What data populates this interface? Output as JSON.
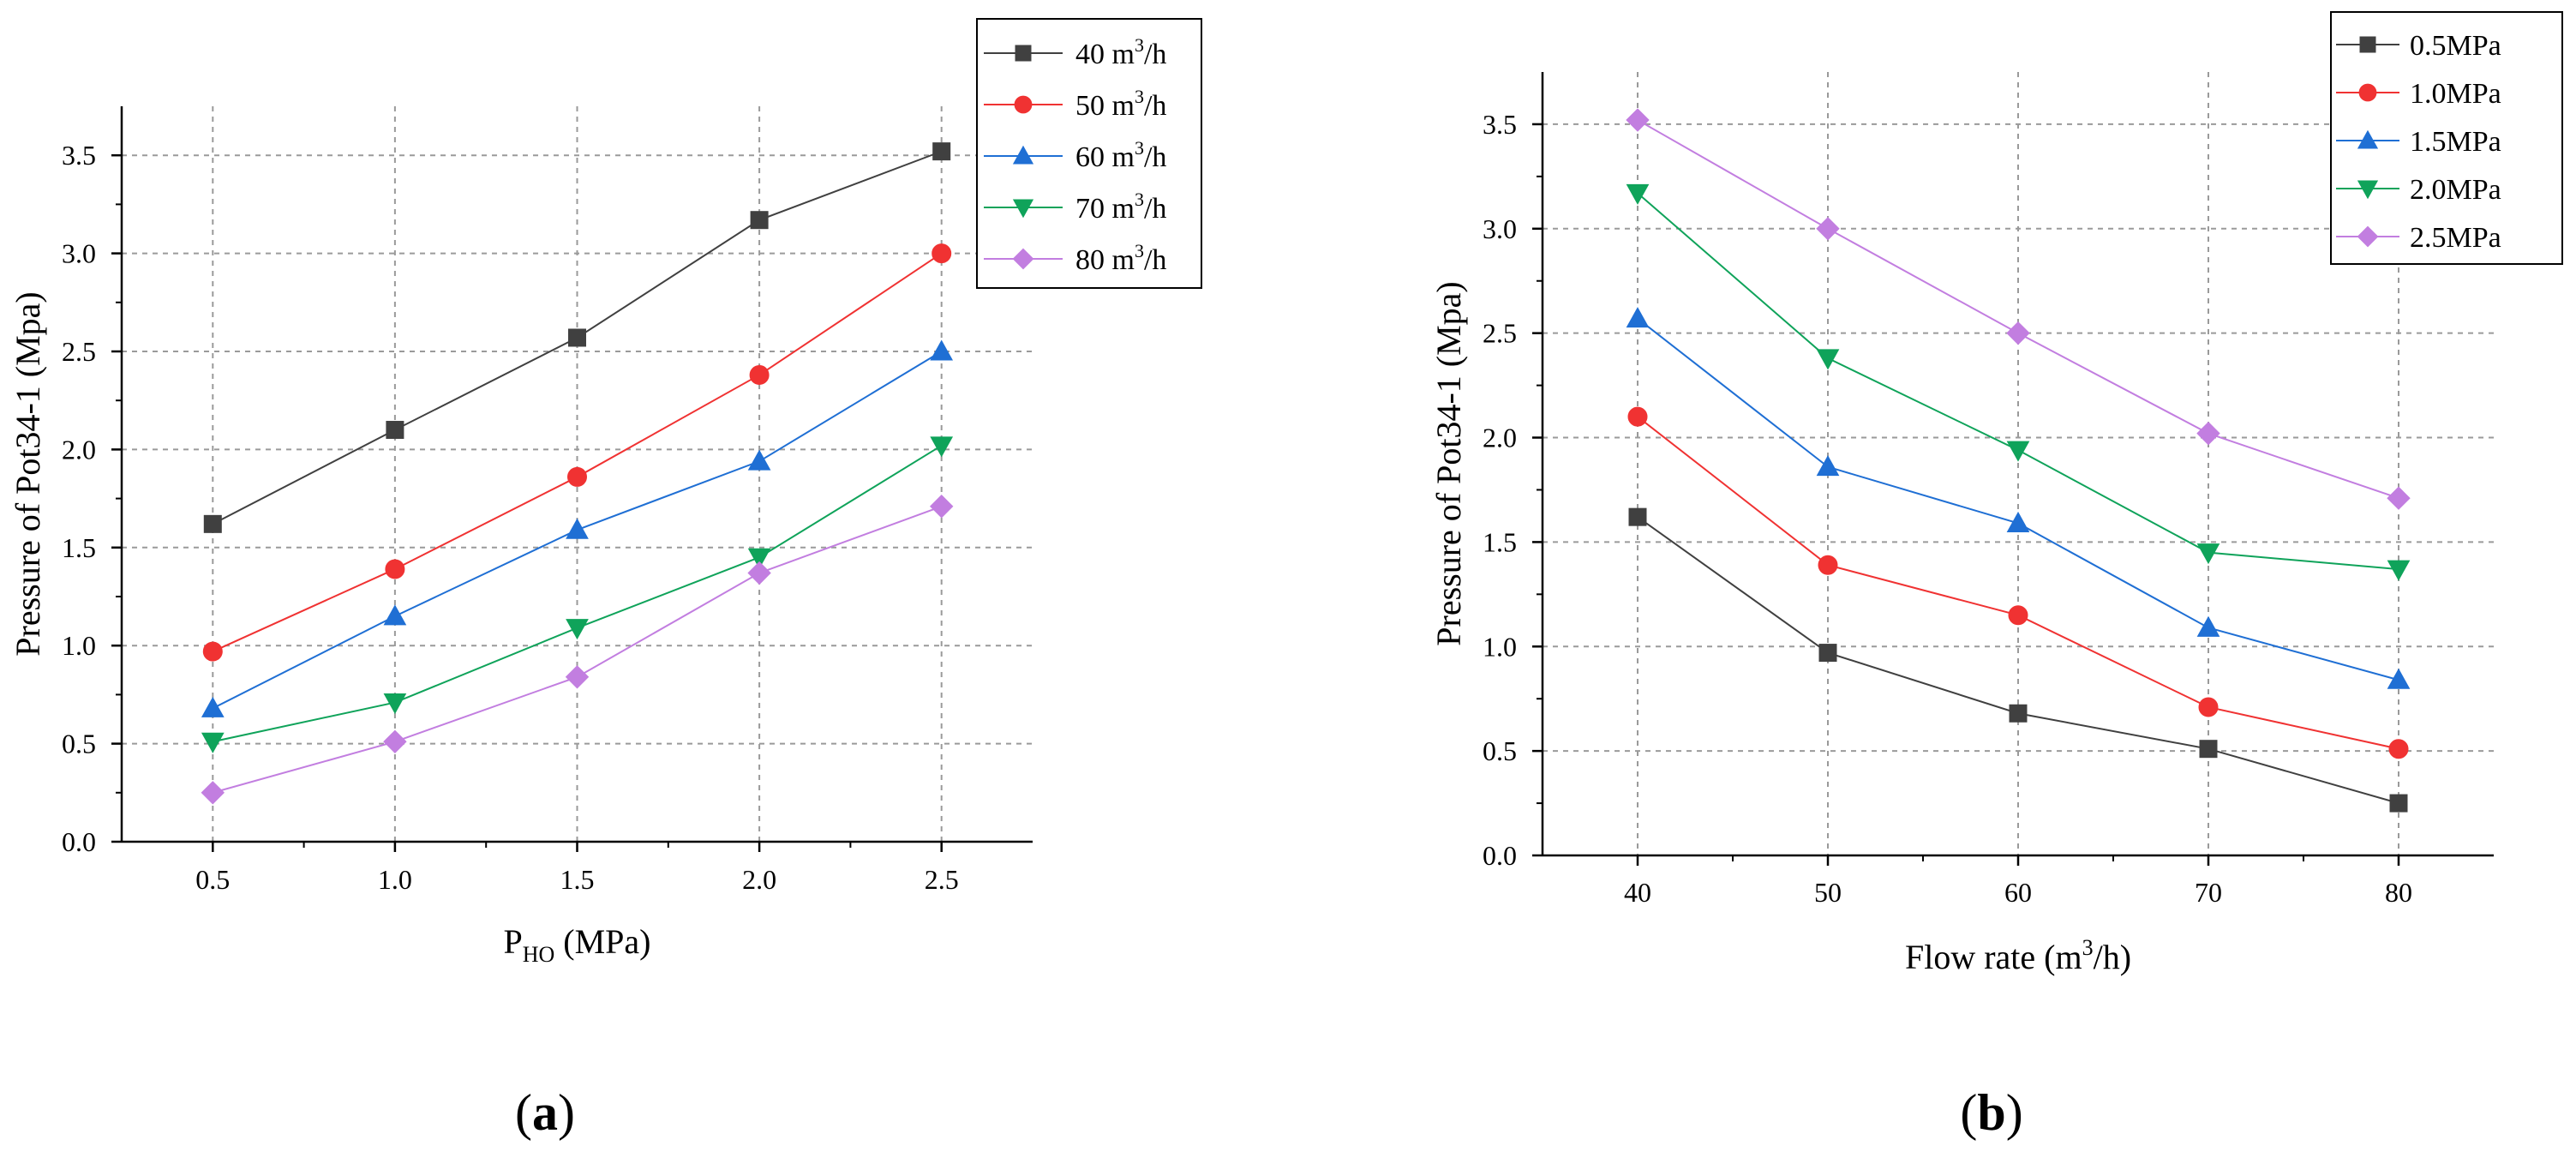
{
  "panels": [
    {
      "label": "a",
      "chart_data": {
        "type": "line",
        "title": "",
        "x": [
          0.5,
          1.0,
          1.5,
          2.0,
          2.5
        ],
        "xticks": [
          "0.5",
          "1.0",
          "1.5",
          "2.0",
          "2.5"
        ],
        "yticks": [
          "0.0",
          "0.5",
          "1.0",
          "1.5",
          "2.0",
          "2.5",
          "3.0",
          "3.5"
        ],
        "xlim": [
          0.25,
          2.75
        ],
        "ylim": [
          0,
          3.75
        ],
        "xlabel": {
          "main": "P",
          "sub": "HO",
          "rest": " (MPa)"
        },
        "ylabel": "Pressure of Pot34-1 (Mpa)",
        "grid": true,
        "legend_position": "top-right",
        "series": [
          {
            "name": "40 m",
            "sup": "3",
            "unit_rest": "/h",
            "color": "#404040",
            "marker": "square",
            "values": [
              1.62,
              2.1,
              2.57,
              3.17,
              3.52
            ]
          },
          {
            "name": "50 m",
            "sup": "3",
            "unit_rest": "/h",
            "color": "#f03232",
            "marker": "circle",
            "values": [
              0.97,
              1.39,
              1.86,
              2.38,
              3.0
            ]
          },
          {
            "name": "60 m",
            "sup": "3",
            "unit_rest": "/h",
            "color": "#1f6fd4",
            "marker": "triangle",
            "values": [
              0.68,
              1.15,
              1.59,
              1.94,
              2.5
            ]
          },
          {
            "name": "70 m",
            "sup": "3",
            "unit_rest": "/h",
            "color": "#0fa35a",
            "marker": "tri-down",
            "values": [
              0.51,
              0.71,
              1.09,
              1.45,
              2.02
            ]
          },
          {
            "name": "80 m",
            "sup": "3",
            "unit_rest": "/h",
            "color": "#c27ee0",
            "marker": "diamond",
            "values": [
              0.25,
              0.51,
              0.84,
              1.37,
              1.71
            ]
          }
        ]
      }
    },
    {
      "label": "b",
      "chart_data": {
        "type": "line",
        "title": "",
        "x": [
          40,
          50,
          60,
          70,
          80
        ],
        "xticks": [
          "40",
          "50",
          "60",
          "70",
          "80"
        ],
        "yticks": [
          "0.0",
          "0.5",
          "1.0",
          "1.5",
          "2.0",
          "2.5",
          "3.0",
          "3.5"
        ],
        "xlim": [
          35,
          85
        ],
        "ylim": [
          0,
          3.75
        ],
        "xlabel": {
          "main": "Flow rate (m",
          "sup": "3",
          "rest": "/h)"
        },
        "ylabel": "Pressure of Pot34-1 (Mpa)",
        "grid": true,
        "legend_position": "top-right",
        "series": [
          {
            "name": "0.5MPa",
            "color": "#404040",
            "marker": "square",
            "values": [
              1.62,
              0.97,
              0.68,
              0.51,
              0.25
            ]
          },
          {
            "name": "1.0MPa",
            "color": "#f03232",
            "marker": "circle",
            "values": [
              2.1,
              1.39,
              1.15,
              0.71,
              0.51
            ]
          },
          {
            "name": "1.5MPa",
            "color": "#1f6fd4",
            "marker": "triangle",
            "values": [
              2.57,
              1.86,
              1.59,
              1.09,
              0.84
            ]
          },
          {
            "name": "2.0MPa",
            "color": "#0fa35a",
            "marker": "tri-down",
            "values": [
              3.17,
              2.38,
              1.94,
              1.45,
              1.37
            ]
          },
          {
            "name": "2.5MPa",
            "color": "#c27ee0",
            "marker": "diamond",
            "values": [
              3.52,
              3.0,
              2.5,
              2.02,
              1.71
            ]
          }
        ]
      }
    }
  ]
}
